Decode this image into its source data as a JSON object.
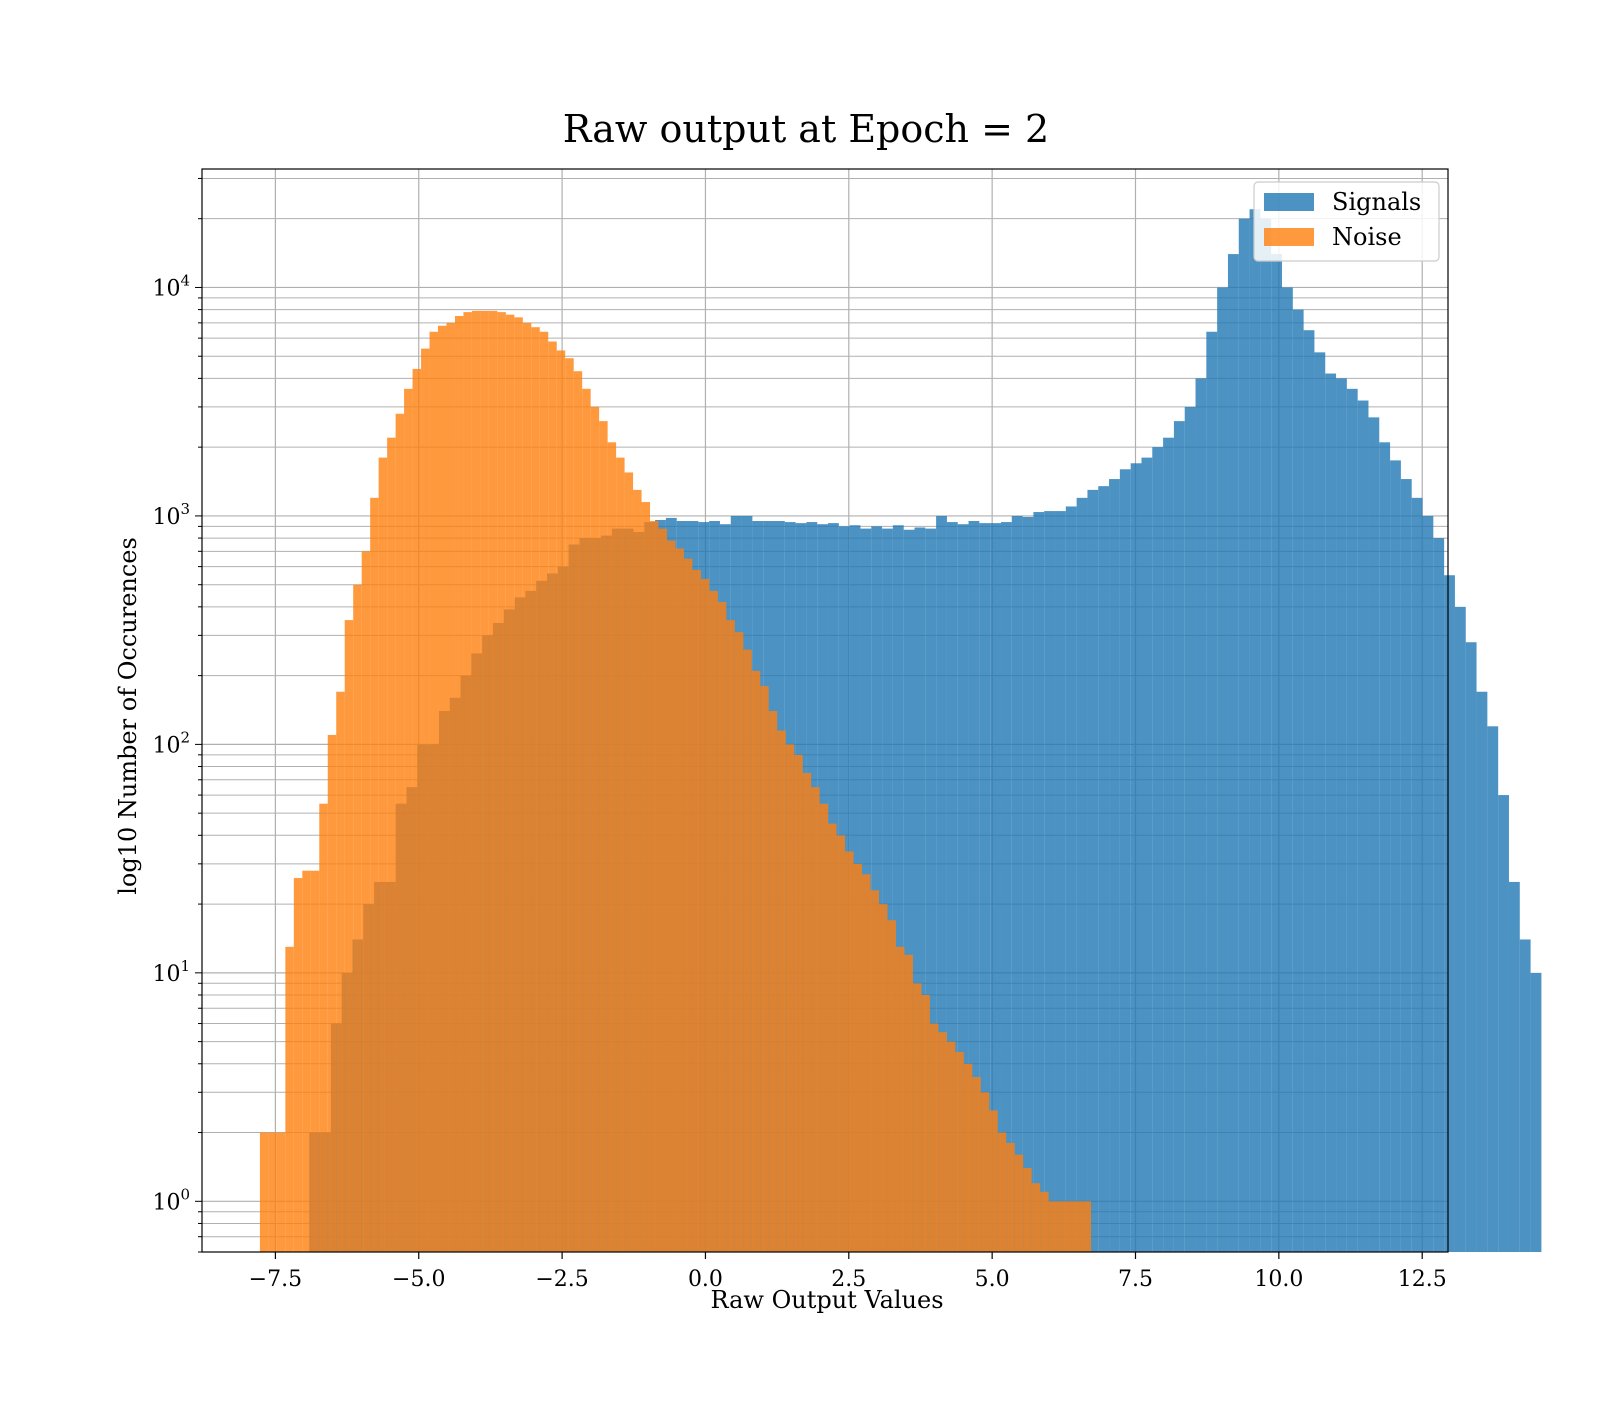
{
  "chart_data": {
    "type": "histogram",
    "title": "Raw output at Epoch = 2",
    "xlabel": "Raw Output Values",
    "ylabel": "log10 Number of Occurences",
    "xlim": [
      -8.78,
      12.95
    ],
    "ylim": [
      0.6,
      33000
    ],
    "yscale": "log",
    "grid": true,
    "legend_position": "top-right",
    "x_ticks": [
      "−7.5",
      "−5.0",
      "−2.5",
      "0.0",
      "2.5",
      "5.0",
      "7.5",
      "10.0",
      "12.5"
    ],
    "x_tick_values": [
      -7.5,
      -5.0,
      -2.5,
      0.0,
      2.5,
      5.0,
      7.5,
      10.0,
      12.5
    ],
    "y_ticks": [
      {
        "base": "10",
        "exp": "0",
        "value": 1
      },
      {
        "base": "10",
        "exp": "1",
        "value": 10
      },
      {
        "base": "10",
        "exp": "2",
        "value": 100
      },
      {
        "base": "10",
        "exp": "3",
        "value": 1000
      },
      {
        "base": "10",
        "exp": "4",
        "value": 10000
      }
    ],
    "series": [
      {
        "name": "Signals",
        "color": "#1f77b4",
        "opacity": 0.8,
        "x_start": -6.91,
        "bin_width": 0.1885,
        "values": [
          2,
          2,
          6,
          10,
          14,
          20,
          25,
          25,
          55,
          65,
          100,
          100,
          140,
          160,
          200,
          250,
          300,
          340,
          390,
          440,
          470,
          520,
          560,
          600,
          750,
          800,
          800,
          820,
          880,
          880,
          850,
          940,
          960,
          980,
          950,
          950,
          940,
          950,
          920,
          1000,
          1000,
          950,
          950,
          950,
          940,
          930,
          940,
          920,
          930,
          900,
          910,
          880,
          900,
          880,
          910,
          870,
          890,
          880,
          1000,
          940,
          920,
          950,
          930,
          930,
          940,
          1000,
          990,
          1040,
          1050,
          1050,
          1100,
          1200,
          1300,
          1350,
          1450,
          1600,
          1700,
          1800,
          2000,
          2200,
          2600,
          3000,
          4000,
          6400,
          10000,
          14000,
          20000,
          22000,
          20000,
          14000,
          10000,
          8000,
          6500,
          5200,
          4200,
          4000,
          3600,
          3200,
          2700,
          2100,
          1750,
          1450,
          1200,
          1000,
          800,
          550,
          400,
          280,
          170,
          120,
          60,
          25,
          14,
          10
        ]
      },
      {
        "name": "Noise",
        "color": "#ff7f0e",
        "opacity": 0.8,
        "x_start": -7.77,
        "bin_width": 0.1479,
        "values": [
          2,
          2,
          2,
          13,
          26,
          28,
          28,
          55,
          110,
          170,
          350,
          500,
          700,
          1200,
          1800,
          2200,
          2800,
          3600,
          4400,
          5400,
          6400,
          6800,
          7000,
          7500,
          7800,
          7900,
          7900,
          7900,
          7800,
          7600,
          7400,
          7000,
          6700,
          6400,
          5800,
          5300,
          4900,
          4300,
          3600,
          3000,
          2600,
          2100,
          1800,
          1550,
          1300,
          1150,
          950,
          880,
          780,
          720,
          650,
          580,
          530,
          470,
          420,
          350,
          310,
          260,
          210,
          180,
          140,
          115,
          100,
          90,
          75,
          65,
          55,
          45,
          40,
          34,
          30,
          27,
          23,
          20,
          17,
          13,
          12,
          9,
          8,
          6,
          5.5,
          5,
          4.5,
          4,
          3.5,
          3,
          2.5,
          2,
          1.8,
          1.6,
          1.4,
          1.2,
          1.1,
          1,
          1,
          1,
          1,
          1
        ]
      }
    ]
  }
}
